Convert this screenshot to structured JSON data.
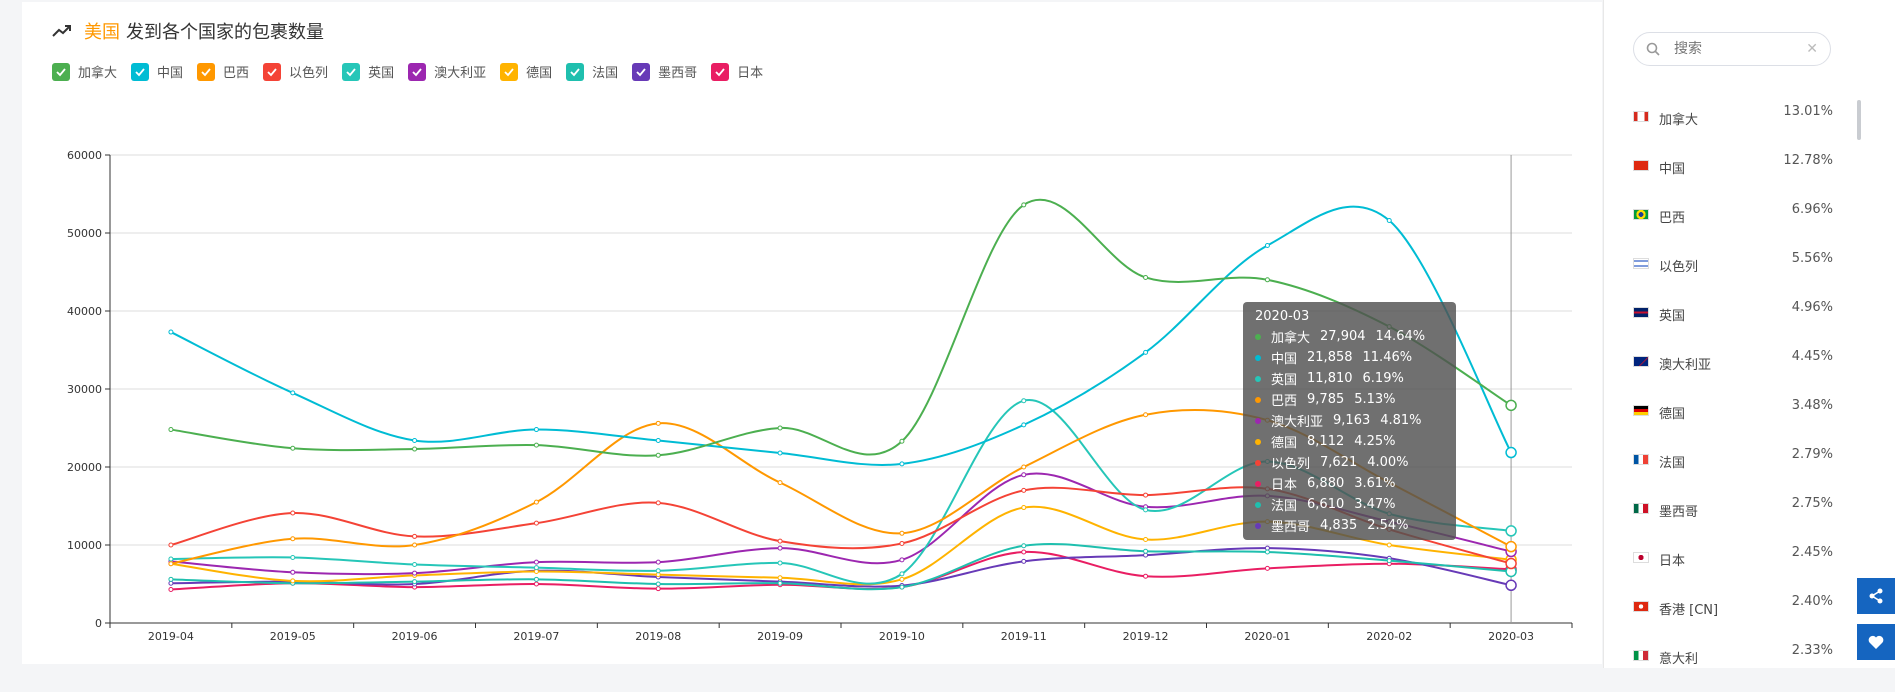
{
  "title": {
    "highlight": "美国",
    "text": "发到各个国家的包裹数量"
  },
  "colors": {
    "加拿大": "#4caf50",
    "中国": "#00bcd4",
    "巴西": "#ff9800",
    "以色列": "#f44336",
    "英国": "#26c6b8",
    "澳大利亚": "#9c27b0",
    "德国": "#ffb300",
    "法国": "#1fbfae",
    "墨西哥": "#673ab7",
    "日本": "#e91e63"
  },
  "legend": [
    "加拿大",
    "中国",
    "巴西",
    "以色列",
    "英国",
    "澳大利亚",
    "德国",
    "法国",
    "墨西哥",
    "日本"
  ],
  "chart_data": {
    "type": "line",
    "x": [
      "2019-04",
      "2019-05",
      "2019-06",
      "2019-07",
      "2019-08",
      "2019-09",
      "2019-10",
      "2019-11",
      "2019-12",
      "2020-01",
      "2020-02",
      "2020-03"
    ],
    "ylim": [
      0,
      60000
    ],
    "yticks": [
      "0",
      "10000",
      "20000",
      "30000",
      "40000",
      "50000",
      "60000"
    ],
    "grid": true,
    "series": [
      {
        "name": "加拿大",
        "values": [
          24800,
          22400,
          22300,
          22800,
          21500,
          25000,
          23300,
          53600,
          44300,
          44000,
          38000,
          27904
        ]
      },
      {
        "name": "中国",
        "values": [
          37300,
          29500,
          23400,
          24800,
          23400,
          21800,
          20400,
          25400,
          34700,
          48400,
          51600,
          21858
        ]
      },
      {
        "name": "巴西",
        "values": [
          7600,
          10800,
          10000,
          15500,
          25600,
          18000,
          11500,
          20000,
          26700,
          26000,
          18000,
          9785
        ]
      },
      {
        "name": "以色列",
        "values": [
          10000,
          14100,
          11100,
          12800,
          15400,
          10500,
          10200,
          17000,
          16400,
          17200,
          12000,
          7621
        ]
      },
      {
        "name": "英国",
        "values": [
          8200,
          8400,
          7500,
          7100,
          6700,
          7700,
          6300,
          28500,
          14500,
          20700,
          14000,
          11810
        ]
      },
      {
        "name": "澳大利亚",
        "values": [
          7900,
          6500,
          6400,
          7800,
          7800,
          9600,
          8100,
          19000,
          14900,
          16300,
          13000,
          9163
        ]
      },
      {
        "name": "德国",
        "values": [
          7600,
          5400,
          6100,
          6600,
          6200,
          5800,
          5600,
          14800,
          10700,
          13000,
          10000,
          8112
        ]
      },
      {
        "name": "法国",
        "values": [
          5600,
          5100,
          5300,
          5600,
          5000,
          5100,
          4600,
          9900,
          9200,
          9100,
          8000,
          6610
        ]
      },
      {
        "name": "墨西哥",
        "values": [
          5100,
          5300,
          5000,
          6700,
          5900,
          5300,
          4800,
          7900,
          8700,
          9600,
          8300,
          4835
        ]
      },
      {
        "name": "日本",
        "values": [
          4300,
          5100,
          4600,
          5000,
          4400,
          4900,
          4600,
          9100,
          6000,
          7000,
          7600,
          6880
        ]
      }
    ]
  },
  "tooltip": {
    "title": "2020-03",
    "rows": [
      {
        "name": "加拿大",
        "value": "27,904",
        "pct": "14.64%"
      },
      {
        "name": "中国",
        "value": "21,858",
        "pct": "11.46%"
      },
      {
        "name": "英国",
        "value": "11,810",
        "pct": "6.19%"
      },
      {
        "name": "巴西",
        "value": "9,785",
        "pct": "5.13%"
      },
      {
        "name": "澳大利亚",
        "value": "9,163",
        "pct": "4.81%"
      },
      {
        "name": "德国",
        "value": "8,112",
        "pct": "4.25%"
      },
      {
        "name": "以色列",
        "value": "7,621",
        "pct": "4.00%"
      },
      {
        "name": "日本",
        "value": "6,880",
        "pct": "3.61%"
      },
      {
        "name": "法国",
        "value": "6,610",
        "pct": "3.47%"
      },
      {
        "name": "墨西哥",
        "value": "4,835",
        "pct": "2.54%"
      }
    ]
  },
  "search": {
    "placeholder": "搜索"
  },
  "countries": [
    {
      "name": "加拿大",
      "pct": "13.01%",
      "flag": "ca"
    },
    {
      "name": "中国",
      "pct": "12.78%",
      "flag": "cn"
    },
    {
      "name": "巴西",
      "pct": "6.96%",
      "flag": "br"
    },
    {
      "name": "以色列",
      "pct": "5.56%",
      "flag": "il"
    },
    {
      "name": "英国",
      "pct": "4.96%",
      "flag": "gb"
    },
    {
      "name": "澳大利亚",
      "pct": "4.45%",
      "flag": "au"
    },
    {
      "name": "德国",
      "pct": "3.48%",
      "flag": "de"
    },
    {
      "name": "法国",
      "pct": "2.79%",
      "flag": "fr"
    },
    {
      "name": "墨西哥",
      "pct": "2.75%",
      "flag": "mx"
    },
    {
      "name": "日本",
      "pct": "2.45%",
      "flag": "jp"
    },
    {
      "name": "香港 [CN]",
      "pct": "2.40%",
      "flag": "hk"
    },
    {
      "name": "意大利",
      "pct": "2.33%",
      "flag": "it"
    }
  ],
  "icons": {
    "trend": "trend-icon",
    "search": "search-icon",
    "clear": "close-icon",
    "share": "share-icon",
    "favorite": "heart-icon"
  }
}
